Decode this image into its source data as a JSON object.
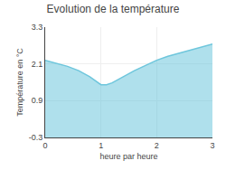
{
  "chart_data": {
    "type": "area",
    "title": "Evolution de la température",
    "xlabel": "heure par heure",
    "ylabel": "Température en °C",
    "x": [
      0,
      0.2,
      0.4,
      0.6,
      0.8,
      1.0,
      1.1,
      1.2,
      1.4,
      1.6,
      1.8,
      2.0,
      2.2,
      2.4,
      2.6,
      2.8,
      3.0
    ],
    "values": [
      2.22,
      2.12,
      2.02,
      1.88,
      1.68,
      1.42,
      1.42,
      1.48,
      1.68,
      1.88,
      2.05,
      2.22,
      2.35,
      2.45,
      2.55,
      2.65,
      2.75
    ],
    "color": "#6ec6dc",
    "xlim": [
      0,
      3
    ],
    "ylim": [
      -0.3,
      3.3
    ],
    "xticks": [
      0,
      1,
      2,
      3
    ],
    "yticks": [
      -0.3,
      0.9,
      2.1,
      3.3
    ],
    "grid": true
  }
}
